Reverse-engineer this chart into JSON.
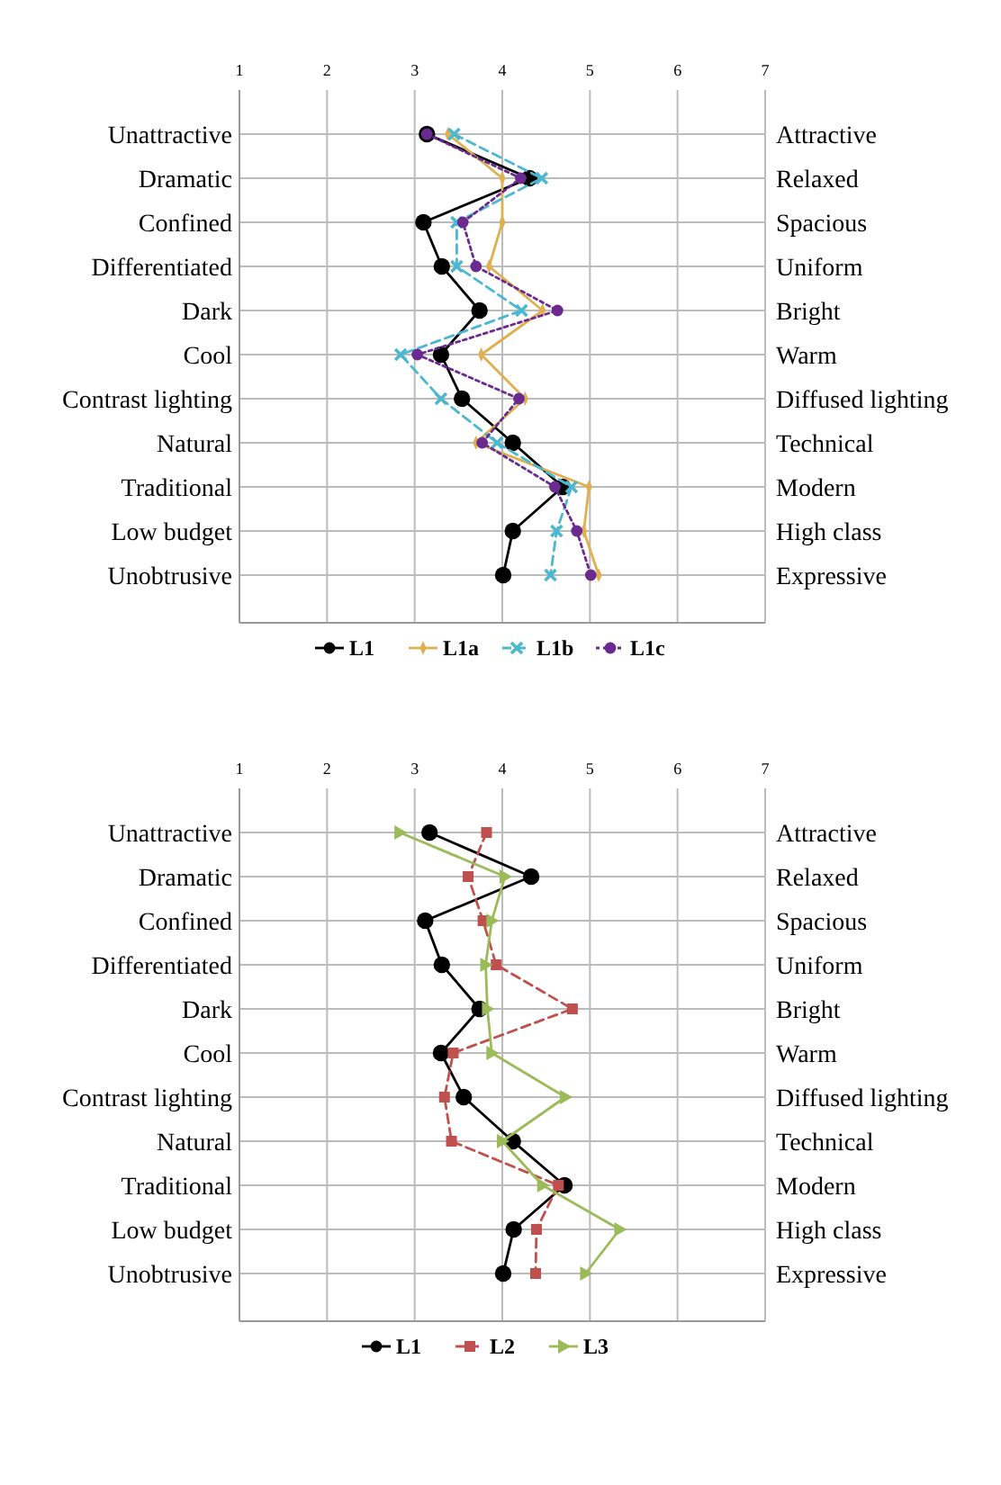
{
  "chart_data": [
    {
      "type": "line",
      "orientation": "horizontal",
      "categories": [
        "Unattractive",
        "Dramatic",
        "Confined",
        "Differentiated",
        "Dark",
        "Cool",
        "Contrast lighting",
        "Natural",
        "Traditional",
        "Low budget",
        "Unobtrusive"
      ],
      "y2_categories": [
        "Attractive",
        "Relaxed",
        "Spacious",
        "Uniform",
        "Bright",
        "Warm",
        "Diffused lighting",
        "Technical",
        "Modern",
        "High class",
        "Expressive"
      ],
      "xlim": [
        1,
        7
      ],
      "xticks": [
        1,
        2,
        3,
        4,
        5,
        6,
        7
      ],
      "grid": true,
      "legend": "bottom",
      "series": [
        {
          "name": "L1",
          "color": "#000000",
          "marker": "circle",
          "line_style": "solid",
          "values": [
            3.14,
            4.31,
            3.1,
            3.31,
            3.74,
            3.3,
            3.54,
            4.12,
            4.69,
            4.12,
            4.01
          ]
        },
        {
          "name": "L1a",
          "color": "#e0b050",
          "marker": "diamond",
          "line_style": "solid",
          "values": [
            3.38,
            4.0,
            4.0,
            3.85,
            4.46,
            3.76,
            4.26,
            3.7,
            4.99,
            4.93,
            5.1
          ]
        },
        {
          "name": "L1b",
          "color": "#4bb8d0",
          "marker": "cross",
          "line_style": "dashed",
          "values": [
            3.45,
            4.45,
            3.48,
            3.48,
            4.22,
            2.84,
            3.3,
            3.94,
            4.79,
            4.62,
            4.55
          ]
        },
        {
          "name": "L1c",
          "color": "#6a2a90",
          "marker": "circle",
          "line_style": "dotted",
          "values": [
            3.14,
            4.21,
            3.55,
            3.7,
            4.63,
            3.03,
            4.19,
            3.77,
            4.6,
            4.85,
            5.01
          ]
        }
      ]
    },
    {
      "type": "line",
      "orientation": "horizontal",
      "categories": [
        "Unattractive",
        "Dramatic",
        "Confined",
        "Differentiated",
        "Dark",
        "Cool",
        "Contrast lighting",
        "Natural",
        "Traditional",
        "Low budget",
        "Unobtrusive"
      ],
      "y2_categories": [
        "Attractive",
        "Relaxed",
        "Spacious",
        "Uniform",
        "Bright",
        "Warm",
        "Diffused lighting",
        "Technical",
        "Modern",
        "High class",
        "Expressive"
      ],
      "xlim": [
        1,
        7
      ],
      "xticks": [
        1,
        2,
        3,
        4,
        5,
        6,
        7
      ],
      "grid": true,
      "legend": "bottom",
      "series": [
        {
          "name": "L1",
          "color": "#000000",
          "marker": "circle",
          "line_style": "solid",
          "values": [
            3.17,
            4.33,
            3.12,
            3.31,
            3.74,
            3.3,
            3.56,
            4.12,
            4.71,
            4.13,
            4.01
          ]
        },
        {
          "name": "L2",
          "color": "#c0504d",
          "marker": "square",
          "line_style": "dashed",
          "values": [
            3.82,
            3.61,
            3.78,
            3.93,
            4.8,
            3.44,
            3.34,
            3.42,
            4.64,
            4.39,
            4.38
          ]
        },
        {
          "name": "L3",
          "color": "#9bbb59",
          "marker": "triangle",
          "line_style": "solid",
          "values": [
            2.83,
            4.03,
            3.88,
            3.81,
            3.83,
            3.88,
            4.72,
            4.0,
            4.46,
            5.34,
            4.95
          ]
        }
      ]
    }
  ]
}
